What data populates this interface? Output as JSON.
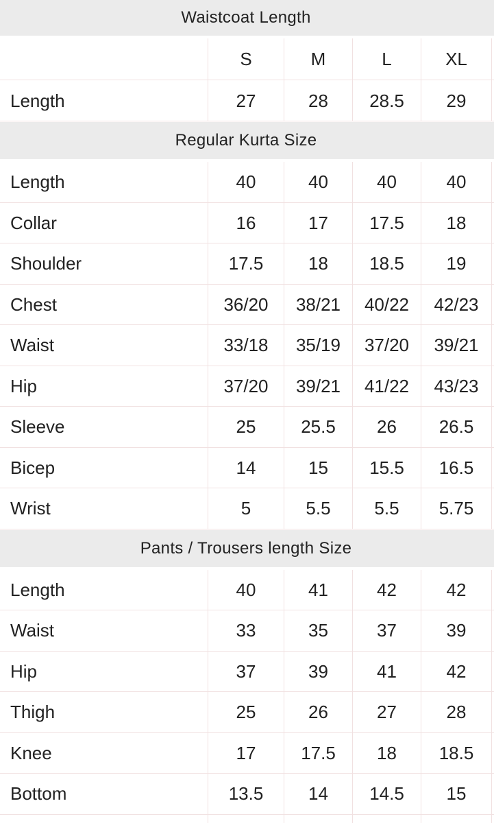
{
  "theme": {
    "page_bg": "#ffffff",
    "band_bg": "#ebebeb",
    "border_color": "#f1e1e1",
    "text_color": "#222222"
  },
  "size_columns": [
    "S",
    "M",
    "L",
    "XL"
  ],
  "sections": [
    {
      "title": "Waistcoat Length",
      "rows": [
        {
          "label": "Length",
          "values": [
            "27",
            "28",
            "28.5",
            "29"
          ]
        }
      ]
    },
    {
      "title": "Regular Kurta Size",
      "rows": [
        {
          "label": "Length",
          "values": [
            "40",
            "40",
            "40",
            "40"
          ]
        },
        {
          "label": "Collar",
          "values": [
            "16",
            "17",
            "17.5",
            "18"
          ]
        },
        {
          "label": "Shoulder",
          "values": [
            "17.5",
            "18",
            "18.5",
            "19"
          ]
        },
        {
          "label": "Chest",
          "values": [
            "36/20",
            "38/21",
            "40/22",
            "42/23"
          ]
        },
        {
          "label": "Waist",
          "values": [
            "33/18",
            "35/19",
            "37/20",
            "39/21"
          ]
        },
        {
          "label": "Hip",
          "values": [
            "37/20",
            "39/21",
            "41/22",
            "43/23"
          ]
        },
        {
          "label": "Sleeve",
          "values": [
            "25",
            "25.5",
            "26",
            "26.5"
          ]
        },
        {
          "label": "Bicep",
          "values": [
            "14",
            "15",
            "15.5",
            "16.5"
          ]
        },
        {
          "label": "Wrist",
          "values": [
            "5",
            "5.5",
            "5.5",
            "5.75"
          ]
        }
      ]
    },
    {
      "title": "Pants / Trousers length Size",
      "rows": [
        {
          "label": "Length",
          "values": [
            "40",
            "41",
            "42",
            "42"
          ]
        },
        {
          "label": "Waist",
          "values": [
            "33",
            "35",
            "37",
            "39"
          ]
        },
        {
          "label": "Hip",
          "values": [
            "37",
            "39",
            "41",
            "42"
          ]
        },
        {
          "label": "Thigh",
          "values": [
            "25",
            "26",
            "27",
            "28"
          ]
        },
        {
          "label": "Knee",
          "values": [
            "17",
            "17.5",
            "18",
            "18.5"
          ]
        },
        {
          "label": "Bottom",
          "values": [
            "13.5",
            "14",
            "14.5",
            "15"
          ]
        }
      ]
    }
  ]
}
